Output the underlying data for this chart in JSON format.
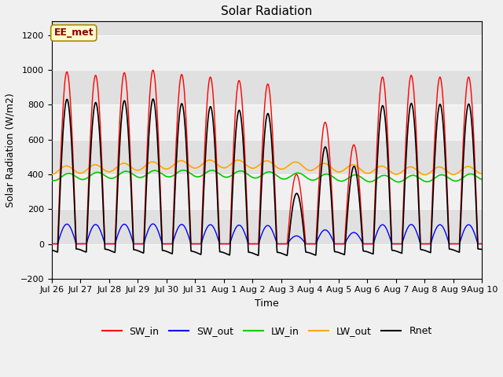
{
  "title": "Solar Radiation",
  "xlabel": "Time",
  "ylabel": "Solar Radiation (W/m2)",
  "ylim": [
    -200,
    1280
  ],
  "yticks": [
    -200,
    0,
    200,
    400,
    600,
    800,
    1000,
    1200
  ],
  "background_color": "#f0f0f0",
  "plot_bg_color": "#e0e0e0",
  "annotation_text": "EE_met",
  "annotation_color": "#8b0000",
  "annotation_bg": "#ffffcc",
  "series_colors": {
    "SW_in": "#ff0000",
    "SW_out": "#0000ff",
    "LW_in": "#00cc00",
    "LW_out": "#ffa500",
    "Rnet": "#000000"
  },
  "series_linewidths": {
    "SW_in": 1.0,
    "SW_out": 1.0,
    "LW_in": 1.2,
    "LW_out": 1.2,
    "Rnet": 1.2
  },
  "n_days": 15,
  "xtick_labels": [
    "Jul 26",
    "Jul 27",
    "Jul 28",
    "Jul 29",
    "Jul 30",
    "Jul 31",
    "Aug 1",
    "Aug 2",
    "Aug 3",
    "Aug 4",
    "Aug 5",
    "Aug 6",
    "Aug 7",
    "Aug 8",
    "Aug 9",
    "Aug 10"
  ],
  "points_per_day": 96,
  "figsize": [
    6.4,
    4.8
  ],
  "dpi": 100
}
